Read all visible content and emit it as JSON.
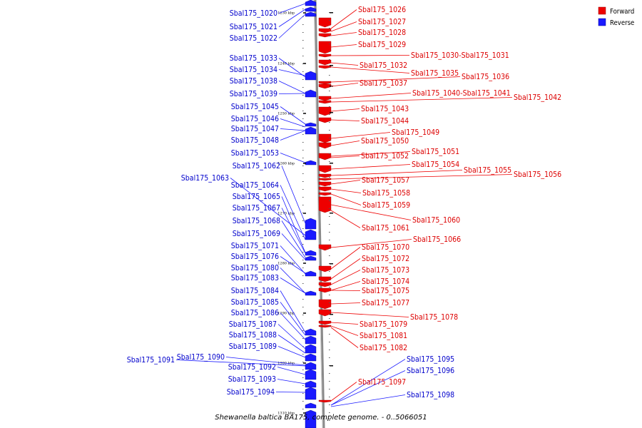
{
  "legend": {
    "forward": {
      "label": "Forward",
      "color": "#ee0000"
    },
    "reverse": {
      "label": "Reverse",
      "color": "#1a1aff"
    }
  },
  "footer": "Shewanella baltica BA175, complete genome. - 0..5066051",
  "kbp_ticks": [
    {
      "label": "1230 kbp"
    },
    {
      "label": "1240 kbp"
    },
    {
      "label": "1250 kbp"
    },
    {
      "label": "1260 kbp"
    },
    {
      "label": "1270 kbp"
    },
    {
      "label": "1280 kbp"
    },
    {
      "label": "1290 kbp"
    },
    {
      "label": "1300 kbp"
    },
    {
      "label": "1310 kbp"
    }
  ],
  "forward_genes": [
    "Sbal175_1026",
    "Sbal175_1027",
    "Sbal175_1028",
    "Sbal175_1029",
    "Sbal175_1030-Sbal175_1031",
    "Sbal175_1032",
    "Sbal175_1035",
    "Sbal175_1036",
    "Sbal175_1037",
    "Sbal175_1040-Sbal175_1041",
    "Sbal175_1042",
    "Sbal175_1043",
    "Sbal175_1044",
    "Sbal175_1049",
    "Sbal175_1050",
    "Sbal175_1051",
    "Sbal175_1052",
    "Sbal175_1054",
    "Sbal175_1055",
    "Sbal175_1056",
    "Sbal175_1057",
    "Sbal175_1058",
    "Sbal175_1059",
    "Sbal175_1060",
    "Sbal175_1061",
    "Sbal175_1066",
    "Sbal175_1070",
    "Sbal175_1072",
    "Sbal175_1073",
    "Sbal175_1074",
    "Sbal175_1075",
    "Sbal175_1077",
    "Sbal175_1078",
    "Sbal175_1079",
    "Sbal175_1081",
    "Sbal175_1082",
    "Sbal175_1097"
  ],
  "reverse_genes": [
    "Sbal175_1020",
    "Sbal175_1021",
    "Sbal175_1022",
    "Sbal175_1033",
    "Sbal175_1034",
    "Sbal175_1038",
    "Sbal175_1039",
    "Sbal175_1045",
    "Sbal175_1046",
    "Sbal175_1047",
    "Sbal175_1048",
    "Sbal175_1053",
    "Sbal175_1062",
    "Sbal175_1063",
    "Sbal175_1064",
    "Sbal175_1065",
    "Sbal175_1067",
    "Sbal175_1068",
    "Sbal175_1069",
    "Sbal175_1071",
    "Sbal175_1076",
    "Sbal175_1080",
    "Sbal175_1083",
    "Sbal175_1084",
    "Sbal175_1085",
    "Sbal175_1086",
    "Sbal175_1087",
    "Sbal175_1088",
    "Sbal175_1089",
    "Sbal175_1090",
    "Sbal175_1091",
    "Sbal175_1092",
    "Sbal175_1093",
    "Sbal175_1094",
    "Sbal175_1095",
    "Sbal175_1096",
    "Sbal175_1098"
  ]
}
